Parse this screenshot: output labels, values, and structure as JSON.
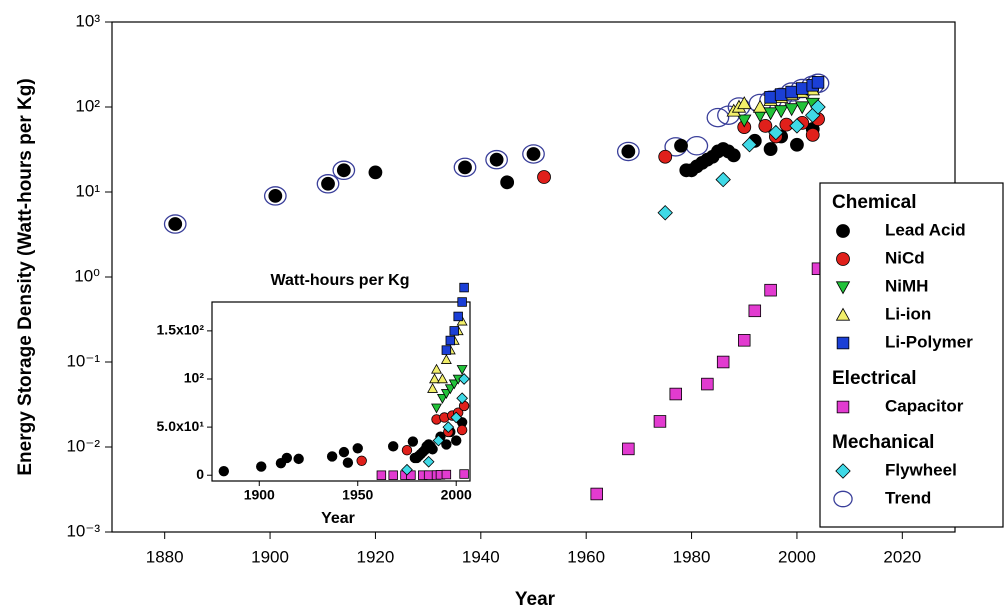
{
  "chart_data": {
    "type": "scatter",
    "xlabel": "Year",
    "ylabel": "Energy Storage Density (Watt-hours per Kg)",
    "log_y": true,
    "grid": false,
    "legend": "right",
    "xlim": [
      1870,
      2030
    ],
    "ylim": [
      0.001,
      1000
    ],
    "xticks": [
      1880,
      1900,
      1920,
      1940,
      1960,
      1980,
      2000,
      2020
    ],
    "yticks": [
      {
        "value": 0.001,
        "label": "10⁻³"
      },
      {
        "value": 0.01,
        "label": "10⁻²"
      },
      {
        "value": 0.1,
        "label": "10⁻¹"
      },
      {
        "value": 1,
        "label": "10⁰"
      },
      {
        "value": 10,
        "label": "10¹"
      },
      {
        "value": 100,
        "label": "10²"
      },
      {
        "value": 1000,
        "label": "10³"
      }
    ],
    "series": [
      {
        "name": "Trend",
        "group": "Mechanical",
        "marker": "ring",
        "color": "#3a3f9a",
        "x": [
          1882,
          1901,
          1911,
          1914,
          1937,
          1943,
          1950,
          1968,
          1977,
          1981,
          1985,
          1987,
          1989,
          1993,
          1995,
          1997,
          1999,
          2001,
          2003,
          2004
        ],
        "values": [
          4.2,
          9,
          12.5,
          18,
          19.5,
          24,
          28,
          30,
          34,
          35,
          75,
          80,
          100,
          110,
          120,
          130,
          150,
          165,
          180,
          190
        ]
      },
      {
        "name": "Lead Acid",
        "group": "Chemical",
        "marker": "circle",
        "color": "#000000",
        "x": [
          1882,
          1901,
          1911,
          1914,
          1920,
          1937,
          1943,
          1945,
          1950,
          1968,
          1978,
          1979,
          1980,
          1981,
          1982,
          1983,
          1984,
          1985,
          1986,
          1987,
          1988,
          1992,
          1995,
          1997,
          2000,
          2003
        ],
        "values": [
          4.2,
          9,
          12.5,
          18,
          17,
          19.5,
          24,
          13,
          28,
          30,
          35,
          18,
          18,
          20,
          22,
          24,
          26,
          30,
          32,
          30,
          27,
          40,
          32,
          45,
          36,
          55
        ]
      },
      {
        "name": "NiCd",
        "group": "Chemical",
        "marker": "circle",
        "color": "#e0201b",
        "x": [
          1952,
          1975,
          1990,
          1994,
          1996,
          1998,
          2001,
          2003,
          2004
        ],
        "values": [
          15,
          26,
          58,
          60,
          45,
          62,
          65,
          47,
          72
        ]
      },
      {
        "name": "NiMH",
        "group": "Chemical",
        "marker": "tri-down",
        "color": "#22c23a",
        "x": [
          1990,
          1993,
          1995,
          1997,
          1999,
          2001,
          2003
        ],
        "values": [
          70,
          80,
          85,
          90,
          95,
          100,
          110
        ]
      },
      {
        "name": "Li-ion",
        "group": "Chemical",
        "marker": "tri-up",
        "color": "#f2ef6a",
        "x": [
          1988,
          1989,
          1990,
          1993,
          1995,
          1997,
          1999,
          2001,
          2003
        ],
        "values": [
          90,
          100,
          110,
          100,
          120,
          130,
          140,
          150,
          160
        ]
      },
      {
        "name": "Li-Polymer",
        "group": "Chemical",
        "marker": "square",
        "color": "#1b3fd6",
        "x": [
          1995,
          1997,
          1999,
          2001,
          2003,
          2004
        ],
        "values": [
          130,
          140,
          150,
          165,
          180,
          195
        ]
      },
      {
        "name": "Capacitor",
        "group": "Electrical",
        "marker": "square",
        "color": "#e23bd0",
        "x": [
          1962,
          1968,
          1974,
          1977,
          1983,
          1986,
          1990,
          1992,
          1995,
          2004
        ],
        "values": [
          0.0028,
          0.0095,
          0.02,
          0.042,
          0.055,
          0.1,
          0.18,
          0.4,
          0.7,
          1.25
        ]
      },
      {
        "name": "Flywheel",
        "group": "Mechanical",
        "marker": "diamond",
        "color": "#3fd9e6",
        "x": [
          1975,
          1986,
          1991,
          1996,
          2000,
          2003,
          2004
        ],
        "values": [
          5.7,
          14,
          36,
          50,
          60,
          80,
          100
        ]
      }
    ],
    "legend_order": [
      "Lead Acid",
      "NiCd",
      "NiMH",
      "Li-ion",
      "Li-Polymer",
      "Capacitor",
      "Flywheel",
      "Trend"
    ],
    "inset": {
      "title": "Watt-hours per Kg",
      "xlabel": "Year",
      "xlim": [
        1876,
        2007
      ],
      "ylim": [
        -6,
        180
      ],
      "xticks": [
        1900,
        1950,
        2000
      ],
      "yticks": [
        0,
        {
          "value": 50,
          "label": "5.0x10¹"
        },
        {
          "value": 100,
          "label": "10²"
        },
        {
          "value": 150,
          "label": "1.5x10²"
        }
      ]
    }
  }
}
